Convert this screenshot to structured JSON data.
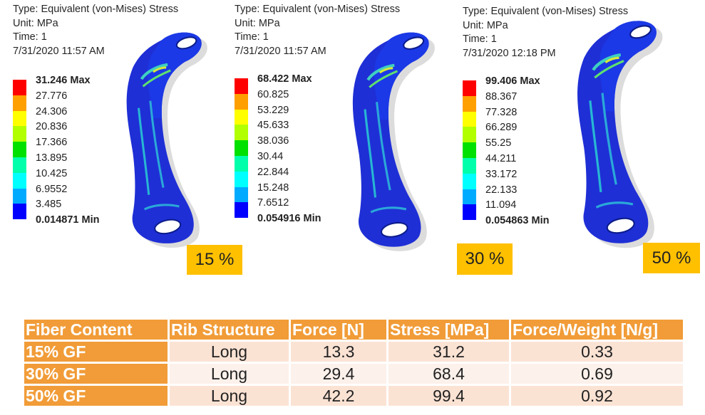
{
  "panels": [
    {
      "type_label": "Type: Equivalent (von-Mises) Stress",
      "unit_label": "Unit: MPa",
      "time_label": "Time: 1",
      "date_label": "7/31/2020 11:57 AM",
      "legend": [
        "31.246 Max",
        "27.776",
        "24.306",
        "20.836",
        "17.366",
        "13.895",
        "10.425",
        "6.9552",
        "3.485",
        "0.014871 Min"
      ],
      "fiber_badge": "15 %"
    },
    {
      "type_label": "Type: Equivalent (von-Mises) Stress",
      "unit_label": "Unit: MPa",
      "time_label": "Time: 1",
      "date_label": "7/31/2020 11:57 AM",
      "legend": [
        "68.422 Max",
        "60.825",
        "53.229",
        "45.633",
        "38.036",
        "30.44",
        "22.844",
        "15.248",
        "7.6512",
        "0.054916 Min"
      ],
      "fiber_badge": "30 %"
    },
    {
      "type_label": "Type: Equivalent (von-Mises) Stress",
      "unit_label": "Unit: MPa",
      "time_label": "Time: 1",
      "date_label": "7/31/2020 12:18 PM",
      "legend": [
        "99.406 Max",
        "88.367",
        "77.328",
        "66.289",
        "55.25",
        "44.211",
        "33.172",
        "22.133",
        "11.094",
        "0.054863 Min"
      ],
      "fiber_badge": "50 %"
    }
  ],
  "legend_colors": [
    "#ff0000",
    "#ff9f00",
    "#ffff00",
    "#b2ff00",
    "#00e100",
    "#00ffaa",
    "#00ffff",
    "#00aaff",
    "#0000ff"
  ],
  "table": {
    "headers": [
      "Fiber Content",
      "Rib Structure",
      "Force [N]",
      "Stress [MPa]",
      "Force/Weight [N/g]"
    ],
    "rows": [
      [
        "15% GF",
        "Long",
        "13.3",
        "31.2",
        "0.33"
      ],
      [
        "30% GF",
        "Long",
        "29.4",
        "68.4",
        "0.69"
      ],
      [
        "50% GF",
        "Long",
        "42.2",
        "99.4",
        "0.92"
      ]
    ]
  }
}
